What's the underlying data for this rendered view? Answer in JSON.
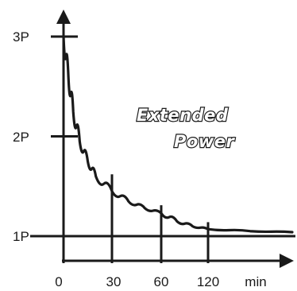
{
  "chart_data": {
    "type": "line",
    "title_lines": [
      "Extended",
      "Power"
    ],
    "x_tick_labels": [
      "0",
      "30",
      "60",
      "120",
      "min"
    ],
    "y_tick_labels": [
      "1P",
      "2P",
      "3P"
    ],
    "x_ticks": [
      0,
      30,
      60,
      120
    ],
    "y_ticks": [
      1,
      2,
      3
    ],
    "series": [
      {
        "points": [
          [
            0,
            3.0
          ],
          [
            3,
            2.6
          ],
          [
            6,
            2.25
          ],
          [
            10,
            1.95
          ],
          [
            15,
            1.75
          ],
          [
            20,
            1.6
          ],
          [
            30,
            1.45
          ],
          [
            40,
            1.35
          ],
          [
            50,
            1.28
          ],
          [
            60,
            1.23
          ],
          [
            80,
            1.15
          ],
          [
            100,
            1.1
          ],
          [
            120,
            1.07
          ],
          [
            150,
            1.05
          ],
          [
            180,
            1.04
          ]
        ]
      }
    ],
    "tick_heights": [
      1.62,
      1.31,
      1.14
    ],
    "baseline": 1,
    "xlim": [
      0,
      180
    ],
    "ylim": [
      0.5,
      3.3
    ],
    "colors": {
      "ink": "#1a1a1a",
      "background": "#ffffff"
    }
  }
}
